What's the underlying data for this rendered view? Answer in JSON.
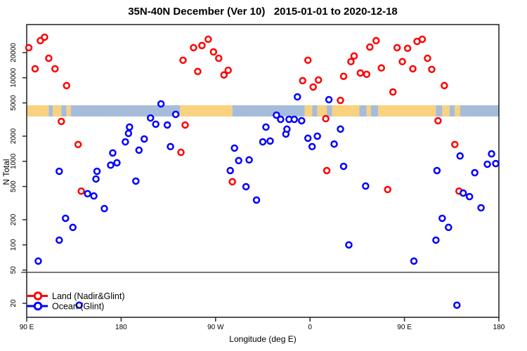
{
  "figure": {
    "title": "35N-40N December (Ver 10)   2015-01-01 to 2020-12-18",
    "xlabel": "Longitude (deg E)",
    "ylabel": "N Total"
  },
  "legend": {
    "items": [
      {
        "label": "Land (Nadir&Glint)",
        "color": "#FF0000"
      },
      {
        "label": "Ocean (Glint)",
        "color": "#0000FF"
      }
    ]
  },
  "chart_data": {
    "type": "scatter",
    "title": "35N-40N December (Ver 10)   2015-01-01 to 2020-12-18",
    "xlabel": "Longitude (deg E)",
    "ylabel": "N Total",
    "x_axis": {
      "note": "longitude plotted eastward starting at 90E: 90E>180>90W>0>90E>180 (extended coordinate 90..540)",
      "tick_labels": [
        "90 E",
        "180",
        "90 W",
        "0",
        "90 E",
        "180"
      ],
      "tick_lons": [
        90,
        180,
        270,
        360,
        450,
        540
      ],
      "range": [
        90,
        540
      ]
    },
    "y_axis": {
      "scale": "log",
      "tick_values": [
        20,
        50,
        100,
        200,
        500,
        1000,
        2000,
        5000,
        10000,
        20000
      ],
      "range": [
        13.6,
        43300
      ]
    },
    "hline_value": 47,
    "land_ocean_strip": {
      "value_top": 4690,
      "value_bottom": 3440,
      "land_color": "#F9D27E",
      "ocean_color": "#A6BCDB",
      "segments": [
        [
          90,
          111,
          "land"
        ],
        [
          111,
          115,
          "ocean"
        ],
        [
          115,
          123,
          "land"
        ],
        [
          123,
          128,
          "ocean"
        ],
        [
          128,
          132,
          "land"
        ],
        [
          132,
          236,
          "ocean"
        ],
        [
          236,
          286,
          "land"
        ],
        [
          286,
          355,
          "ocean"
        ],
        [
          355,
          362,
          "land"
        ],
        [
          362,
          367,
          "ocean"
        ],
        [
          367,
          376,
          "land"
        ],
        [
          376,
          381,
          "ocean"
        ],
        [
          381,
          407,
          "land"
        ],
        [
          407,
          414,
          "ocean"
        ],
        [
          414,
          418,
          "land"
        ],
        [
          418,
          425,
          "ocean"
        ],
        [
          425,
          480,
          "land"
        ],
        [
          480,
          486,
          "ocean"
        ],
        [
          486,
          493,
          "land"
        ],
        [
          493,
          498,
          "ocean"
        ],
        [
          498,
          503,
          "land"
        ],
        [
          503,
          540,
          "ocean"
        ]
      ]
    },
    "series": [
      {
        "name": "Land (Nadir&Glint)",
        "color": "#FF0000",
        "points": [
          [
            92,
            22900
          ],
          [
            103,
            27800
          ],
          [
            107,
            30600
          ],
          [
            111,
            17100
          ],
          [
            98,
            12800
          ],
          [
            117,
            12800
          ],
          [
            128,
            8060
          ],
          [
            123,
            3000
          ],
          [
            139,
            1590
          ],
          [
            142,
            440
          ],
          [
            237,
            1280
          ],
          [
            239,
            16200
          ],
          [
            241,
            2720
          ],
          [
            249,
            22900
          ],
          [
            253,
            11900
          ],
          [
            257,
            24300
          ],
          [
            263,
            28900
          ],
          [
            268,
            20400
          ],
          [
            273,
            17100
          ],
          [
            278,
            10800
          ],
          [
            282,
            12300
          ],
          [
            286,
            570
          ],
          [
            353,
            9230
          ],
          [
            358,
            16200
          ],
          [
            363,
            7750
          ],
          [
            368,
            9400
          ],
          [
            375,
            3240
          ],
          [
            376,
            775
          ],
          [
            389,
            5360
          ],
          [
            392,
            10400
          ],
          [
            399,
            15600
          ],
          [
            402,
            18200
          ],
          [
            408,
            11400
          ],
          [
            414,
            11000
          ],
          [
            417,
            23300
          ],
          [
            423,
            27800
          ],
          [
            428,
            13100
          ],
          [
            434,
            460
          ],
          [
            439,
            6760
          ],
          [
            443,
            22900
          ],
          [
            448,
            15600
          ],
          [
            453,
            22500
          ],
          [
            458,
            12800
          ],
          [
            462,
            27200
          ],
          [
            467,
            28900
          ],
          [
            472,
            17100
          ],
          [
            476,
            12600
          ],
          [
            482,
            3060
          ],
          [
            488,
            8060
          ],
          [
            498,
            1590
          ],
          [
            502,
            440
          ]
        ]
      },
      {
        "name": "Ocean (Glint)",
        "color": "#0000FF",
        "points": [
          [
            101,
            64
          ],
          [
            121,
            760
          ],
          [
            121,
            114
          ],
          [
            127,
            208
          ],
          [
            134,
            162
          ],
          [
            140,
            19
          ],
          [
            148,
            410
          ],
          [
            154,
            385
          ],
          [
            156,
            615
          ],
          [
            157,
            760
          ],
          [
            164,
            272
          ],
          [
            170,
            900
          ],
          [
            172,
            1260
          ],
          [
            176,
            960
          ],
          [
            184,
            1710
          ],
          [
            187,
            2160
          ],
          [
            188,
            2570
          ],
          [
            194,
            580
          ],
          [
            197,
            1360
          ],
          [
            202,
            1850
          ],
          [
            208,
            3300
          ],
          [
            213,
            2780
          ],
          [
            218,
            4870
          ],
          [
            224,
            2720
          ],
          [
            227,
            1500
          ],
          [
            232,
            3650
          ],
          [
            284,
            775
          ],
          [
            288,
            1440
          ],
          [
            292,
            1020
          ],
          [
            299,
            497
          ],
          [
            302,
            1040
          ],
          [
            309,
            344
          ],
          [
            315,
            1710
          ],
          [
            318,
            2570
          ],
          [
            322,
            1750
          ],
          [
            328,
            3570
          ],
          [
            332,
            3180
          ],
          [
            337,
            2120
          ],
          [
            338,
            2430
          ],
          [
            340,
            3180
          ],
          [
            345,
            3180
          ],
          [
            348,
            5910
          ],
          [
            352,
            3060
          ],
          [
            358,
            1890
          ],
          [
            362,
            1500
          ],
          [
            367,
            2000
          ],
          [
            378,
            5470
          ],
          [
            383,
            1610
          ],
          [
            389,
            2430
          ],
          [
            392,
            871
          ],
          [
            397,
            100
          ],
          [
            413,
            506
          ],
          [
            459,
            64
          ],
          [
            480,
            114
          ],
          [
            481,
            775
          ],
          [
            486,
            208
          ],
          [
            492,
            162
          ],
          [
            500,
            19
          ],
          [
            503,
            1160
          ],
          [
            506,
            417
          ],
          [
            512,
            378
          ],
          [
            517,
            731
          ],
          [
            523,
            278
          ],
          [
            529,
            923
          ],
          [
            533,
            1230
          ],
          [
            537,
            940
          ]
        ]
      }
    ]
  }
}
